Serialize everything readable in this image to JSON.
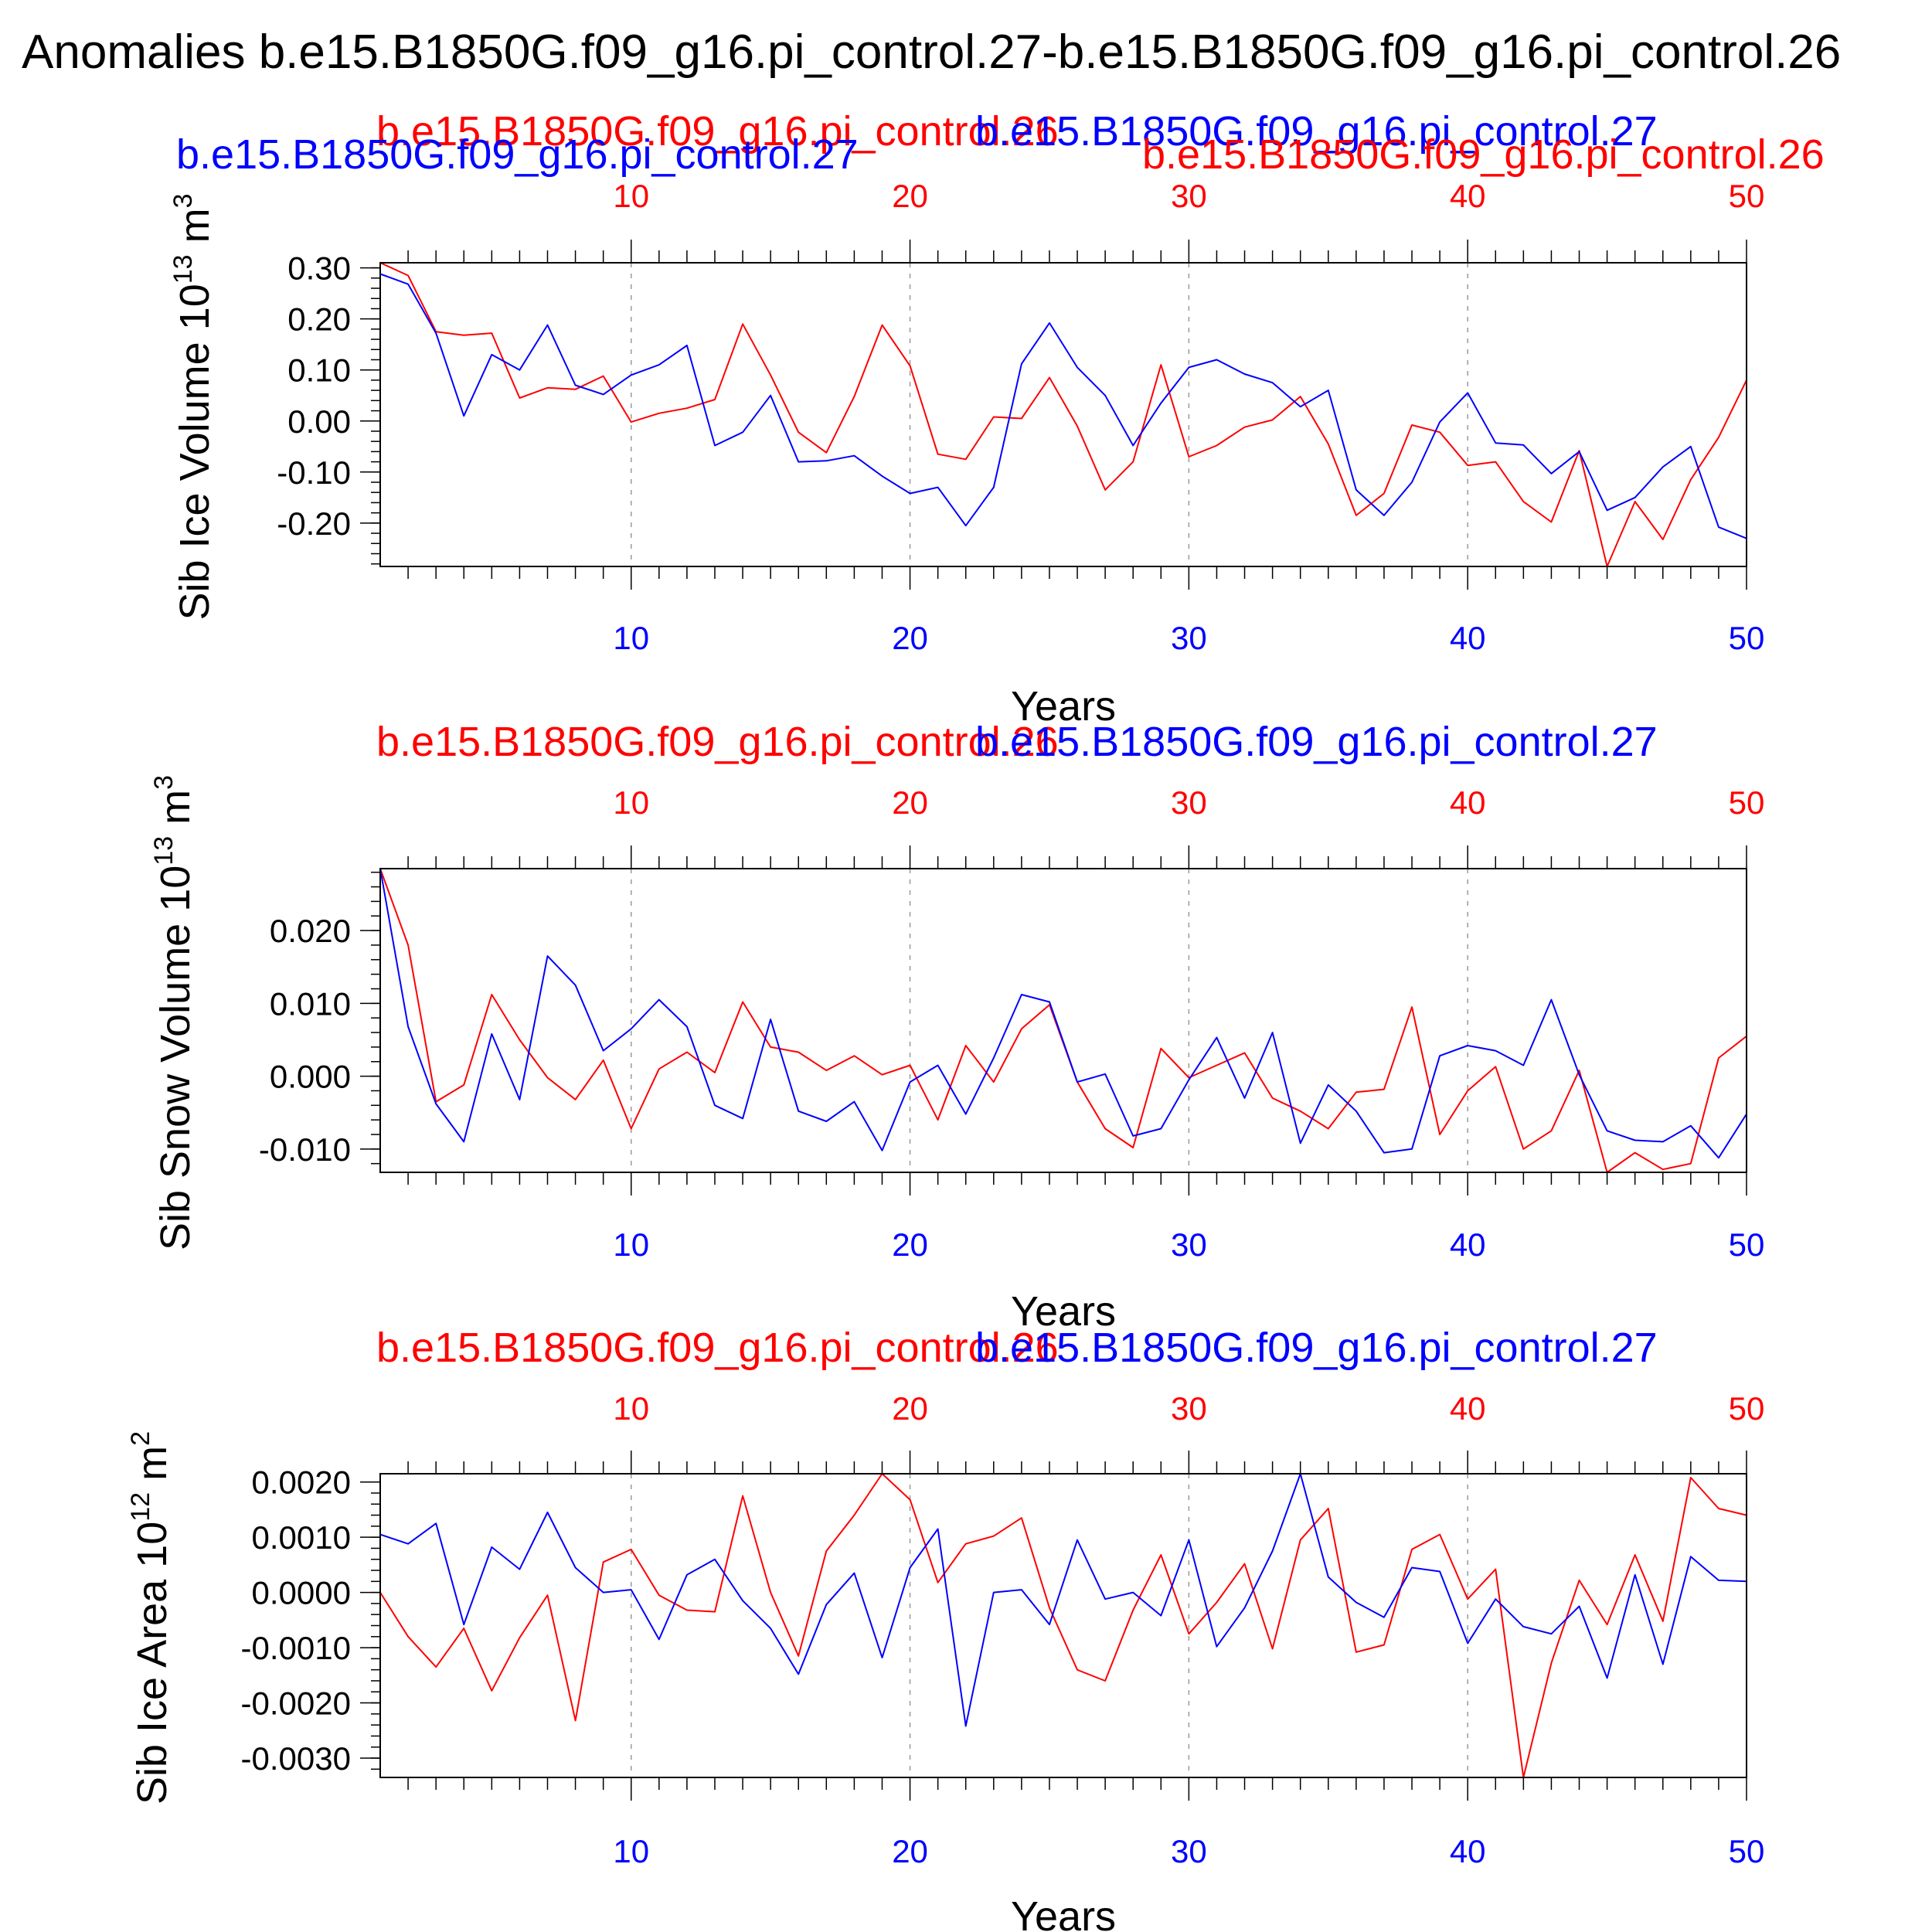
{
  "title": "Anomalies b.e15.B1850G.f09_g16.pi_control.27-b.e15.B1850G.f09_g16.pi_control.26",
  "colors": {
    "run26": "#ff0000",
    "run27": "#0000ff",
    "axis": "#000000",
    "grid": "#999999"
  },
  "chart_data": [
    {
      "type": "line",
      "ylabel": "Sib Ice Volume 10",
      "ylabel_exp": "13",
      "ylabel_unit": " m",
      "ylabel_unit_exp": "3",
      "xlabel": "Years",
      "xlim": [
        1,
        50
      ],
      "ylim": [
        -0.285,
        0.31
      ],
      "xticks": [
        10,
        20,
        30,
        40,
        50
      ],
      "yticks": [
        0.3,
        0.2,
        0.1,
        0.0,
        -0.1,
        -0.2
      ],
      "ytick_labels": [
        "0.30",
        "0.20",
        "0.10",
        "0.00",
        "-0.10",
        "-0.20"
      ],
      "yminor_step": 0.02,
      "grid_x": true,
      "x": [
        1,
        2,
        3,
        4,
        5,
        6,
        7,
        8,
        9,
        10,
        11,
        12,
        13,
        14,
        15,
        16,
        17,
        18,
        19,
        20,
        21,
        22,
        23,
        24,
        25,
        26,
        27,
        28,
        29,
        30,
        31,
        32,
        33,
        34,
        35,
        36,
        37,
        38,
        39,
        40,
        41,
        42,
        43,
        44,
        45,
        46,
        47,
        48,
        49,
        50
      ],
      "series": [
        {
          "name": "b.e15.B1850G.f09_g16.pi_control.26",
          "color": "#ff0000",
          "values": [
            0.31,
            0.285,
            0.175,
            0.168,
            0.172,
            0.045,
            0.065,
            0.062,
            0.088,
            -0.002,
            0.015,
            0.025,
            0.042,
            0.19,
            0.09,
            -0.022,
            -0.062,
            0.048,
            0.188,
            0.108,
            -0.065,
            -0.075,
            0.008,
            0.005,
            0.085,
            -0.01,
            -0.135,
            -0.08,
            0.11,
            -0.07,
            -0.048,
            -0.012,
            0.002,
            0.048,
            -0.045,
            -0.185,
            -0.142,
            -0.008,
            -0.022,
            -0.087,
            -0.08,
            -0.158,
            -0.198,
            -0.058,
            -0.285,
            -0.158,
            -0.232,
            -0.115,
            -0.032,
            0.08
          ]
        },
        {
          "name": "b.e15.B1850G.f09_g16.pi_control.27",
          "color": "#0000ff",
          "values": [
            0.288,
            0.268,
            0.172,
            0.01,
            0.13,
            0.1,
            0.188,
            0.07,
            0.052,
            0.09,
            0.11,
            0.148,
            -0.048,
            -0.022,
            0.05,
            -0.08,
            -0.078,
            -0.068,
            -0.108,
            -0.142,
            -0.13,
            -0.205,
            -0.13,
            0.112,
            0.192,
            0.105,
            0.05,
            -0.048,
            0.035,
            0.105,
            0.12,
            0.092,
            0.075,
            0.028,
            0.06,
            -0.135,
            -0.185,
            -0.12,
            -0.002,
            0.055,
            -0.043,
            -0.047,
            -0.103,
            -0.06,
            -0.175,
            -0.15,
            -0.09,
            -0.05,
            -0.208,
            -0.23
          ]
        }
      ]
    },
    {
      "type": "line",
      "ylabel": "Sib Snow Volume 10",
      "ylabel_exp": "13",
      "ylabel_unit": " m",
      "ylabel_unit_exp": "3",
      "xlabel": "Years",
      "xlim": [
        1,
        50
      ],
      "ylim": [
        -0.0132,
        0.0285
      ],
      "xticks": [
        10,
        20,
        30,
        40,
        50
      ],
      "yticks": [
        0.02,
        0.01,
        0.0,
        -0.01
      ],
      "ytick_labels": [
        "0.020",
        "0.010",
        "0.000",
        "-0.010"
      ],
      "yminor_step": 0.002,
      "grid_x": true,
      "x": [
        1,
        2,
        3,
        4,
        5,
        6,
        7,
        8,
        9,
        10,
        11,
        12,
        13,
        14,
        15,
        16,
        17,
        18,
        19,
        20,
        21,
        22,
        23,
        24,
        25,
        26,
        27,
        28,
        29,
        30,
        31,
        32,
        33,
        34,
        35,
        36,
        37,
        38,
        39,
        40,
        41,
        42,
        43,
        44,
        45,
        46,
        47,
        48,
        49,
        50
      ],
      "series": [
        {
          "name": "b.e15.B1850G.f09_g16.pi_control.26",
          "color": "#ff0000",
          "values": [
            0.0285,
            0.018,
            -0.0035,
            -0.0012,
            0.0112,
            0.005,
            -0.0002,
            -0.0032,
            0.0022,
            -0.0072,
            0.001,
            0.0033,
            0.0005,
            0.0102,
            0.004,
            0.0033,
            0.0008,
            0.0028,
            0.0002,
            0.0015,
            -0.006,
            0.0042,
            -0.0008,
            0.0065,
            0.0098,
            -0.0008,
            -0.0072,
            -0.0098,
            0.0038,
            -0.0002,
            0.0015,
            0.0032,
            -0.003,
            -0.0048,
            -0.0072,
            -0.0022,
            -0.0018,
            0.0095,
            -0.008,
            -0.002,
            0.0013,
            -0.01,
            -0.0075,
            0.0008,
            -0.0132,
            -0.0105,
            -0.0128,
            -0.012,
            0.0025,
            0.0055
          ]
        },
        {
          "name": "b.e15.B1850G.f09_g16.pi_control.27",
          "color": "#0000ff",
          "values": [
            0.0285,
            0.0068,
            -0.0038,
            -0.009,
            0.0058,
            -0.0032,
            0.0165,
            0.0125,
            0.0035,
            0.0065,
            0.0105,
            0.0068,
            -0.004,
            -0.0058,
            0.0078,
            -0.0048,
            -0.0062,
            -0.0035,
            -0.0102,
            -0.0008,
            0.0015,
            -0.0052,
            0.0025,
            0.0112,
            0.0102,
            -0.0008,
            0.0003,
            -0.0082,
            -0.0072,
            -0.0005,
            0.0053,
            -0.003,
            0.006,
            -0.0092,
            -0.0012,
            -0.0048,
            -0.0105,
            -0.01,
            0.0028,
            0.0042,
            0.0035,
            0.0015,
            0.0105,
            0.0002,
            -0.0075,
            -0.0088,
            -0.009,
            -0.0068,
            -0.0112,
            -0.0052
          ]
        }
      ]
    },
    {
      "type": "line",
      "ylabel": "Sib Ice Area 10",
      "ylabel_exp": "12",
      "ylabel_unit": " m",
      "ylabel_unit_exp": "2",
      "xlabel": "Years",
      "xlim": [
        1,
        50
      ],
      "ylim": [
        -0.00335,
        0.00215
      ],
      "xticks": [
        10,
        20,
        30,
        40,
        50
      ],
      "yticks": [
        0.002,
        0.001,
        0.0,
        -0.001,
        -0.002,
        -0.003
      ],
      "ytick_labels": [
        "0.0020",
        "0.0010",
        "0.0000",
        "-0.0010",
        "-0.0020",
        "-0.0030"
      ],
      "yminor_step": 0.0002,
      "grid_x": true,
      "x": [
        1,
        2,
        3,
        4,
        5,
        6,
        7,
        8,
        9,
        10,
        11,
        12,
        13,
        14,
        15,
        16,
        17,
        18,
        19,
        20,
        21,
        22,
        23,
        24,
        25,
        26,
        27,
        28,
        29,
        30,
        31,
        32,
        33,
        34,
        35,
        36,
        37,
        38,
        39,
        40,
        41,
        42,
        43,
        44,
        45,
        46,
        47,
        48,
        49,
        50
      ],
      "series": [
        {
          "name": "b.e15.B1850G.f09_g16.pi_control.26",
          "color": "#ff0000",
          "values": [
            0.0,
            -0.0008,
            -0.00135,
            -0.00065,
            -0.00178,
            -0.00082,
            -5e-05,
            -0.00232,
            0.00055,
            0.00078,
            -5e-05,
            -0.00032,
            -0.00035,
            0.00175,
            0.0,
            -0.00115,
            0.00075,
            0.0014,
            0.00215,
            0.00168,
            0.00018,
            0.00088,
            0.00102,
            0.00135,
            -0.00028,
            -0.0014,
            -0.0016,
            -0.00032,
            0.00068,
            -0.00075,
            -0.00018,
            0.00052,
            -0.00102,
            0.00095,
            0.00152,
            -0.00108,
            -0.00095,
            0.00078,
            0.00105,
            -0.00012,
            0.00042,
            -0.00335,
            -0.00128,
            0.00022,
            -0.00058,
            0.00068,
            -0.00052,
            0.00208,
            0.00152,
            0.0014
          ]
        },
        {
          "name": "b.e15.B1850G.f09_g16.pi_control.27",
          "color": "#0000ff",
          "values": [
            0.00105,
            0.00088,
            0.00125,
            -0.00058,
            0.00082,
            0.00042,
            0.00145,
            0.00045,
            0.0,
            5e-05,
            -0.00085,
            0.00032,
            0.0006,
            -0.00015,
            -0.00065,
            -0.00148,
            -0.00022,
            0.00035,
            -0.00118,
            0.00045,
            0.00115,
            -0.00242,
            0.0,
            5e-05,
            -0.00058,
            0.00095,
            -0.00012,
            0.0,
            -0.00042,
            0.00095,
            -0.00098,
            -0.00028,
            0.00075,
            0.00215,
            0.00028,
            -0.00018,
            -0.00045,
            0.00045,
            0.00038,
            -0.00092,
            -0.00012,
            -0.00062,
            -0.00075,
            -0.00025,
            -0.00155,
            0.00032,
            -0.0013,
            0.00065,
            0.00022,
            0.0002
          ]
        }
      ]
    }
  ]
}
